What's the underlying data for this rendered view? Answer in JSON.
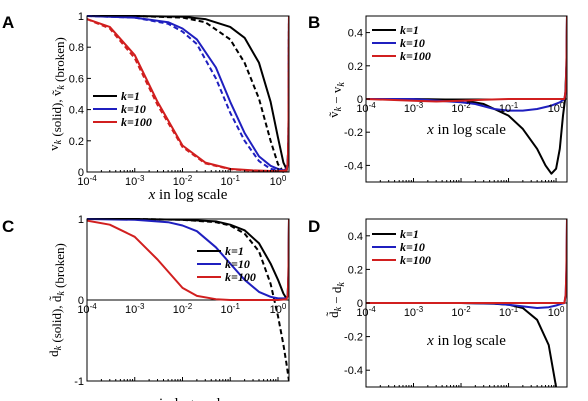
{
  "figure": {
    "background": "#ffffff",
    "colors": {
      "k1": "#000000",
      "k10": "#1f1fbf",
      "k100": "#d11f1f"
    }
  },
  "chart_data": [
    {
      "panel": "A",
      "type": "line",
      "xscale": "log",
      "xlim": [
        0.0001,
        1.7
      ],
      "ylim": [
        0,
        1
      ],
      "xticks": [
        0.0001,
        0.001,
        0.01,
        0.1,
        1
      ],
      "xtick_labels": [
        "10-4",
        "10-3",
        "10-2",
        "10-1",
        "100"
      ],
      "yticks": [
        0,
        0.2,
        0.4,
        0.6,
        0.8,
        1
      ],
      "ytick_labels": [
        "0",
        "0.2",
        "0.4",
        "0.6",
        "0.8",
        "1"
      ],
      "xlabel": "x in log scale",
      "ylabel": "v_k (solid), ṽ_k (broken)",
      "legend": {
        "position": "lower-left",
        "entries": [
          "k=1",
          "k=10",
          "k=100"
        ]
      },
      "series": [
        {
          "name": "k=1",
          "style": "solid",
          "color": "#000000",
          "x": [
            0.0001,
            0.001,
            0.01,
            0.03,
            0.1,
            0.2,
            0.4,
            0.7,
            1.0,
            1.3,
            1.5,
            1.6,
            1.65,
            1.7
          ],
          "y": [
            1.0,
            1.0,
            0.995,
            0.98,
            0.93,
            0.86,
            0.7,
            0.45,
            0.22,
            0.06,
            0.02,
            0.05,
            0.2,
            1.0
          ]
        },
        {
          "name": "k=1",
          "style": "dashed",
          "color": "#000000",
          "x": [
            0.0001,
            0.001,
            0.01,
            0.03,
            0.1,
            0.2,
            0.4,
            0.7,
            1.0,
            1.3,
            1.5,
            1.6,
            1.65,
            1.7
          ],
          "y": [
            1.0,
            1.0,
            0.99,
            0.96,
            0.85,
            0.7,
            0.47,
            0.2,
            0.05,
            0.0,
            0.0,
            0.05,
            0.2,
            1.0
          ]
        },
        {
          "name": "k=10",
          "style": "solid",
          "color": "#1f1fbf",
          "x": [
            0.0001,
            0.001,
            0.005,
            0.01,
            0.02,
            0.05,
            0.1,
            0.2,
            0.4,
            0.7,
            1.0,
            1.3,
            1.5,
            1.6,
            1.65,
            1.7
          ],
          "y": [
            1.0,
            0.99,
            0.96,
            0.92,
            0.85,
            0.67,
            0.45,
            0.25,
            0.1,
            0.04,
            0.02,
            0.01,
            0.02,
            0.05,
            0.2,
            1.0
          ]
        },
        {
          "name": "k=10",
          "style": "dashed",
          "color": "#1f1fbf",
          "x": [
            0.0001,
            0.001,
            0.005,
            0.01,
            0.02,
            0.05,
            0.1,
            0.2,
            0.4,
            0.7,
            1.0,
            1.3,
            1.5,
            1.6,
            1.65,
            1.7
          ],
          "y": [
            1.0,
            0.99,
            0.95,
            0.9,
            0.82,
            0.6,
            0.38,
            0.2,
            0.07,
            0.02,
            0.01,
            0.01,
            0.02,
            0.05,
            0.2,
            1.0
          ]
        },
        {
          "name": "k=100",
          "style": "solid",
          "color": "#d11f1f",
          "x": [
            0.0001,
            0.0003,
            0.001,
            0.003,
            0.01,
            0.03,
            0.1,
            0.3,
            1.0,
            1.5,
            1.6,
            1.65,
            1.7
          ],
          "y": [
            0.98,
            0.93,
            0.75,
            0.45,
            0.17,
            0.06,
            0.02,
            0.01,
            0.005,
            0.01,
            0.05,
            0.2,
            1.0
          ]
        },
        {
          "name": "k=100",
          "style": "dashed",
          "color": "#d11f1f",
          "x": [
            0.0001,
            0.0003,
            0.001,
            0.003,
            0.01,
            0.03,
            0.1,
            0.3,
            1.0,
            1.5,
            1.6,
            1.65,
            1.7
          ],
          "y": [
            0.98,
            0.92,
            0.73,
            0.43,
            0.16,
            0.055,
            0.018,
            0.008,
            0.004,
            0.01,
            0.05,
            0.2,
            1.0
          ]
        }
      ]
    },
    {
      "panel": "B",
      "type": "line",
      "xscale": "log",
      "xlim": [
        0.0001,
        1.7
      ],
      "ylim": [
        -0.5,
        0.5
      ],
      "xticks": [
        0.0001,
        0.001,
        0.01,
        0.1,
        1
      ],
      "xtick_labels": [
        "10-4",
        "10-3",
        "10-2",
        "10-1",
        "100"
      ],
      "yticks": [
        -0.4,
        -0.2,
        0,
        0.2,
        0.4
      ],
      "ytick_labels": [
        "-0.4",
        "-0.2",
        "0",
        "0.2",
        "0.4"
      ],
      "xlabel": "x in log scale",
      "ylabel": "ṽ_k − v_k",
      "legend": {
        "position": "top-left",
        "entries": [
          "k=1",
          "k=10",
          "k=100"
        ]
      },
      "series": [
        {
          "name": "k=1",
          "color": "#000000",
          "x": [
            0.0001,
            0.001,
            0.01,
            0.03,
            0.1,
            0.2,
            0.4,
            0.6,
            0.8,
            1.0,
            1.2,
            1.4,
            1.55,
            1.65,
            1.7
          ],
          "y": [
            0,
            0,
            -0.005,
            -0.03,
            -0.1,
            -0.18,
            -0.3,
            -0.4,
            -0.45,
            -0.42,
            -0.3,
            -0.1,
            0.0,
            0.2,
            0.5
          ]
        },
        {
          "name": "k=10",
          "color": "#1f1fbf",
          "x": [
            0.0001,
            0.001,
            0.01,
            0.02,
            0.05,
            0.1,
            0.2,
            0.4,
            0.8,
            1.2,
            1.5,
            1.6,
            1.65,
            1.7
          ],
          "y": [
            0,
            0,
            -0.02,
            -0.03,
            -0.06,
            -0.07,
            -0.07,
            -0.06,
            -0.04,
            -0.02,
            0.0,
            0.05,
            0.2,
            0.5
          ]
        },
        {
          "name": "k=100",
          "color": "#d11f1f",
          "x": [
            0.0001,
            0.001,
            0.003,
            0.01,
            0.03,
            0.1,
            1.0,
            1.5,
            1.6,
            1.65,
            1.7
          ],
          "y": [
            0,
            -0.01,
            -0.015,
            -0.01,
            -0.005,
            0.0,
            0.0,
            0.0,
            0.05,
            0.2,
            0.5
          ]
        }
      ]
    },
    {
      "panel": "C",
      "type": "line",
      "xscale": "log",
      "xlim": [
        0.0001,
        1.7
      ],
      "ylim": [
        -1,
        1
      ],
      "xticks": [
        0.0001,
        0.001,
        0.01,
        0.1,
        1
      ],
      "xtick_labels": [
        "10-4",
        "10-3",
        "10-2",
        "10-1",
        "100"
      ],
      "yticks": [
        -1,
        0,
        1
      ],
      "ytick_labels": [
        "-1",
        "0",
        "1"
      ],
      "xlabel": "x in log scale",
      "ylabel": "d_k (solid), d̃_k (broken)",
      "legend": {
        "position": "center-right",
        "entries": [
          "k=1",
          "k=10",
          "k=100"
        ]
      },
      "series": [
        {
          "name": "k=1",
          "style": "solid",
          "color": "#000000",
          "x": [
            0.0001,
            0.001,
            0.01,
            0.05,
            0.1,
            0.2,
            0.4,
            0.7,
            1.0,
            1.3,
            1.5,
            1.6,
            1.65,
            1.7
          ],
          "y": [
            1.0,
            1.0,
            0.99,
            0.97,
            0.93,
            0.86,
            0.7,
            0.45,
            0.25,
            0.08,
            0.02,
            0.05,
            0.3,
            1.0
          ]
        },
        {
          "name": "k=1",
          "style": "dashed",
          "color": "#000000",
          "x": [
            0.0001,
            0.001,
            0.01,
            0.05,
            0.1,
            0.2,
            0.4,
            0.7,
            1.0,
            1.3,
            1.5,
            1.7
          ],
          "y": [
            1.0,
            1.0,
            0.99,
            0.96,
            0.92,
            0.82,
            0.6,
            0.2,
            -0.2,
            -0.55,
            -0.78,
            -1.0
          ]
        },
        {
          "name": "k=10",
          "style": "solid",
          "color": "#1f1fbf",
          "x": [
            0.0001,
            0.001,
            0.005,
            0.01,
            0.02,
            0.05,
            0.1,
            0.2,
            0.4,
            0.7,
            1.0,
            1.5,
            1.6,
            1.65,
            1.7
          ],
          "y": [
            1.0,
            0.99,
            0.96,
            0.92,
            0.85,
            0.65,
            0.45,
            0.25,
            0.1,
            0.04,
            0.02,
            0.02,
            0.05,
            0.3,
            1.0
          ]
        },
        {
          "name": "k=100",
          "style": "solid",
          "color": "#d11f1f",
          "x": [
            0.0001,
            0.0003,
            0.001,
            0.003,
            0.01,
            0.02,
            0.05,
            0.1,
            1.0,
            1.5,
            1.6,
            1.65,
            1.7
          ],
          "y": [
            0.98,
            0.93,
            0.78,
            0.5,
            0.15,
            0.05,
            0.01,
            0.0,
            0.0,
            0.01,
            0.05,
            0.3,
            1.0
          ]
        }
      ]
    },
    {
      "panel": "D",
      "type": "line",
      "xscale": "log",
      "xlim": [
        0.0001,
        1.7
      ],
      "ylim": [
        -0.5,
        0.5
      ],
      "xticks": [
        0.0001,
        0.001,
        0.01,
        0.1,
        1
      ],
      "xtick_labels": [
        "10-4",
        "10-3",
        "10-2",
        "10-1",
        "100"
      ],
      "yticks": [
        -0.4,
        -0.2,
        0,
        0.2,
        0.4
      ],
      "ytick_labels": [
        "-0.4",
        "-0.2",
        "0",
        "0.2",
        "0.4"
      ],
      "xlabel": "x in log scale",
      "ylabel": "d̃_k − d_k",
      "legend": {
        "position": "top-left",
        "entries": [
          "k=1",
          "k=10",
          "k=100"
        ]
      },
      "series": [
        {
          "name": "k=1",
          "color": "#000000",
          "x": [
            0.0001,
            0.01,
            0.05,
            0.1,
            0.2,
            0.4,
            0.7,
            1.0
          ],
          "y": [
            0,
            0,
            -0.005,
            -0.01,
            -0.03,
            -0.1,
            -0.25,
            -0.5
          ]
        },
        {
          "name": "k=10",
          "color": "#1f1fbf",
          "x": [
            0.0001,
            0.01,
            0.05,
            0.1,
            0.2,
            0.4,
            0.7,
            1.0,
            1.3,
            1.5,
            1.6,
            1.65,
            1.7
          ],
          "y": [
            0,
            0,
            -0.003,
            -0.01,
            -0.02,
            -0.03,
            -0.025,
            -0.015,
            -0.005,
            0.0,
            0.05,
            0.2,
            0.5
          ]
        },
        {
          "name": "k=100",
          "color": "#d11f1f",
          "x": [
            0.0001,
            0.01,
            0.1,
            1.0,
            1.5,
            1.6,
            1.65,
            1.7
          ],
          "y": [
            0,
            0,
            0,
            0,
            0.0,
            0.05,
            0.2,
            0.5
          ]
        }
      ]
    }
  ]
}
